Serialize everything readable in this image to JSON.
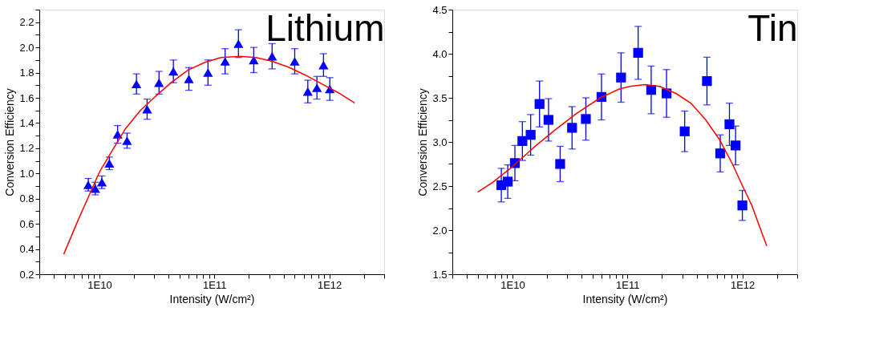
{
  "chart_data": [
    {
      "type": "scatter",
      "title": "Lithium",
      "xlabel": "Intensity (W/cm²)",
      "ylabel": "Conversion Efficiency",
      "log": "x",
      "grid": false,
      "xlim": [
        3000000000.0,
        3000000000000.0
      ],
      "ylim": [
        0.2,
        2.3
      ],
      "xticks": [
        {
          "value": 3000000000.0,
          "label": null
        },
        {
          "value": 4000000000.0,
          "label": null
        },
        {
          "value": 5000000000.0,
          "label": null
        },
        {
          "value": 6000000000.0,
          "label": null
        },
        {
          "value": 7000000000.0,
          "label": null
        },
        {
          "value": 8000000000.0,
          "label": null
        },
        {
          "value": 9000000000.0,
          "label": null
        },
        {
          "value": 10000000000.0,
          "label": "1E10"
        },
        {
          "value": 20000000000.0,
          "label": null
        },
        {
          "value": 30000000000.0,
          "label": null
        },
        {
          "value": 40000000000.0,
          "label": null
        },
        {
          "value": 50000000000.0,
          "label": null
        },
        {
          "value": 60000000000.0,
          "label": null
        },
        {
          "value": 70000000000.0,
          "label": null
        },
        {
          "value": 80000000000.0,
          "label": null
        },
        {
          "value": 90000000000.0,
          "label": null
        },
        {
          "value": 100000000000.0,
          "label": "1E11"
        },
        {
          "value": 200000000000.0,
          "label": null
        },
        {
          "value": 300000000000.0,
          "label": null
        },
        {
          "value": 400000000000.0,
          "label": null
        },
        {
          "value": 500000000000.0,
          "label": null
        },
        {
          "value": 600000000000.0,
          "label": null
        },
        {
          "value": 700000000000.0,
          "label": null
        },
        {
          "value": 800000000000.0,
          "label": null
        },
        {
          "value": 900000000000.0,
          "label": null
        },
        {
          "value": 1000000000000.0,
          "label": "1E12"
        },
        {
          "value": 2000000000000.0,
          "label": null
        },
        {
          "value": 3000000000000.0,
          "label": null
        }
      ],
      "yticks": [
        {
          "value": 0.2,
          "label": "0.2"
        },
        {
          "value": 0.3,
          "label": null
        },
        {
          "value": 0.4,
          "label": "0.4"
        },
        {
          "value": 0.5,
          "label": null
        },
        {
          "value": 0.6,
          "label": "0.6"
        },
        {
          "value": 0.7,
          "label": null
        },
        {
          "value": 0.8,
          "label": "0.8"
        },
        {
          "value": 0.9,
          "label": null
        },
        {
          "value": 1.0,
          "label": "1.0"
        },
        {
          "value": 1.1,
          "label": null
        },
        {
          "value": 1.2,
          "label": "1.2"
        },
        {
          "value": 1.3,
          "label": null
        },
        {
          "value": 1.4,
          "label": "1.4"
        },
        {
          "value": 1.5,
          "label": null
        },
        {
          "value": 1.6,
          "label": "1.6"
        },
        {
          "value": 1.7,
          "label": null
        },
        {
          "value": 1.8,
          "label": "1.8"
        },
        {
          "value": 1.9,
          "label": null
        },
        {
          "value": 2.0,
          "label": "2.0"
        },
        {
          "value": 2.1,
          "label": null
        },
        {
          "value": 2.2,
          "label": "2.2"
        },
        {
          "value": 2.3,
          "label": null
        }
      ],
      "series": [
        {
          "color": "#0000ff",
          "marker": "triangle",
          "x": [
            8000000000.0,
            9200000000.0,
            10500000000.0,
            12200000000.0,
            14400000000.0,
            17400000000.0,
            21000000000.0,
            26000000000.0,
            33000000000.0,
            44000000000.0,
            60000000000.0,
            88000000000.0,
            124000000000.0,
            162000000000.0,
            220000000000.0,
            318000000000.0,
            500000000000.0,
            650000000000.0,
            780000000000.0,
            890000000000.0,
            1010000000000.0
          ],
          "values": [
            0.91,
            0.88,
            0.93,
            1.08,
            1.31,
            1.26,
            1.71,
            1.51,
            1.72,
            1.81,
            1.75,
            1.8,
            1.89,
            2.03,
            1.9,
            1.93,
            1.89,
            1.65,
            1.68,
            1.86,
            1.67
          ],
          "errors": [
            0.05,
            0.05,
            0.05,
            0.05,
            0.07,
            0.06,
            0.08,
            0.08,
            0.09,
            0.09,
            0.09,
            0.1,
            0.1,
            0.11,
            0.1,
            0.1,
            0.1,
            0.09,
            0.09,
            0.09,
            0.09
          ]
        },
        {
          "type": "line",
          "color": "#ff0000",
          "marker": "none",
          "line_style": "solid",
          "x": [
            4900000000.0,
            6600000000.0,
            10000000000.0,
            12700000000.0,
            16700000000.0,
            22700000000.0,
            30600000000.0,
            42000000000.0,
            59000000000.0,
            82000000000.0,
            114000000000.0,
            167000000000.0,
            230000000000.0,
            320000000000.0,
            450000000000.0,
            620000000000.0,
            860000000000.0,
            1200000000000.0,
            1660000000000.0
          ],
          "values": [
            0.36,
            0.64,
            1.01,
            1.17,
            1.35,
            1.5,
            1.61,
            1.72,
            1.82,
            1.88,
            1.92,
            1.93,
            1.92,
            1.89,
            1.84,
            1.78,
            1.71,
            1.64,
            1.56
          ]
        }
      ]
    },
    {
      "type": "scatter",
      "title": "Tin",
      "xlabel": "Intensity (W/cm²)",
      "ylabel": "Conversion Efficiency",
      "log": "x",
      "grid": false,
      "xlim": [
        3000000000.0,
        3000000000000.0
      ],
      "ylim": [
        1.5,
        4.5
      ],
      "xticks": [
        {
          "value": 3000000000.0,
          "label": null
        },
        {
          "value": 4000000000.0,
          "label": null
        },
        {
          "value": 5000000000.0,
          "label": null
        },
        {
          "value": 6000000000.0,
          "label": null
        },
        {
          "value": 7000000000.0,
          "label": null
        },
        {
          "value": 8000000000.0,
          "label": null
        },
        {
          "value": 9000000000.0,
          "label": null
        },
        {
          "value": 10000000000.0,
          "label": "1E10"
        },
        {
          "value": 20000000000.0,
          "label": null
        },
        {
          "value": 30000000000.0,
          "label": null
        },
        {
          "value": 40000000000.0,
          "label": null
        },
        {
          "value": 50000000000.0,
          "label": null
        },
        {
          "value": 60000000000.0,
          "label": null
        },
        {
          "value": 70000000000.0,
          "label": null
        },
        {
          "value": 80000000000.0,
          "label": null
        },
        {
          "value": 90000000000.0,
          "label": null
        },
        {
          "value": 100000000000.0,
          "label": "1E11"
        },
        {
          "value": 200000000000.0,
          "label": null
        },
        {
          "value": 300000000000.0,
          "label": null
        },
        {
          "value": 400000000000.0,
          "label": null
        },
        {
          "value": 500000000000.0,
          "label": null
        },
        {
          "value": 600000000000.0,
          "label": null
        },
        {
          "value": 700000000000.0,
          "label": null
        },
        {
          "value": 800000000000.0,
          "label": null
        },
        {
          "value": 900000000000.0,
          "label": null
        },
        {
          "value": 1000000000000.0,
          "label": "1E12"
        },
        {
          "value": 2000000000000.0,
          "label": null
        },
        {
          "value": 3000000000000.0,
          "label": null
        }
      ],
      "yticks": [
        {
          "value": 1.5,
          "label": "1.5"
        },
        {
          "value": 1.75,
          "label": null
        },
        {
          "value": 2.0,
          "label": "2.0"
        },
        {
          "value": 2.25,
          "label": null
        },
        {
          "value": 2.5,
          "label": "2.5"
        },
        {
          "value": 2.75,
          "label": null
        },
        {
          "value": 3.0,
          "label": "3.0"
        },
        {
          "value": 3.25,
          "label": null
        },
        {
          "value": 3.5,
          "label": "3.5"
        },
        {
          "value": 3.75,
          "label": null
        },
        {
          "value": 4.0,
          "label": "4.0"
        },
        {
          "value": 4.25,
          "label": null
        },
        {
          "value": 4.5,
          "label": "4.5"
        }
      ],
      "series": [
        {
          "color": "#0000ff",
          "marker": "square",
          "x": [
            8000000000.0,
            9100000000.0,
            10500000000.0,
            12200000000.0,
            14400000000.0,
            17200000000.0,
            20600000000.0,
            26000000000.0,
            33000000000.0,
            43500000000.0,
            59500000000.0,
            88000000000.0,
            124000000000.0,
            161000000000.0,
            219000000000.0,
            315000000000.0,
            492000000000.0,
            642000000000.0,
            772000000000.0,
            873000000000.0,
            1000000000000.0
          ],
          "values": [
            2.51,
            2.55,
            2.76,
            3.01,
            3.08,
            3.43,
            3.25,
            2.75,
            3.16,
            3.26,
            3.51,
            3.73,
            4.01,
            3.59,
            3.55,
            3.12,
            3.69,
            2.87,
            3.2,
            2.96,
            2.28
          ],
          "errors": [
            0.19,
            0.19,
            0.2,
            0.22,
            0.23,
            0.26,
            0.24,
            0.2,
            0.24,
            0.24,
            0.26,
            0.28,
            0.3,
            0.27,
            0.27,
            0.23,
            0.27,
            0.21,
            0.24,
            0.22,
            0.17
          ]
        },
        {
          "type": "line",
          "color": "#ff0000",
          "marker": "none",
          "line_style": "solid",
          "x": [
            4980000000.0,
            6700000000.0,
            10000000000.0,
            15100000000.0,
            23200000000.0,
            35800000000.0,
            58000000000.0,
            85000000000.0,
            105000000000.0,
            142000000000.0,
            191000000000.0,
            264000000000.0,
            356000000000.0,
            480000000000.0,
            630000000000.0,
            820000000000.0,
            1020000000000.0,
            1200000000000.0,
            1410000000000.0,
            1630000000000.0
          ],
          "values": [
            2.43,
            2.54,
            2.72,
            2.93,
            3.13,
            3.32,
            3.5,
            3.6,
            3.63,
            3.65,
            3.63,
            3.55,
            3.44,
            3.25,
            3.03,
            2.75,
            2.48,
            2.29,
            2.04,
            1.82
          ]
        }
      ]
    }
  ]
}
